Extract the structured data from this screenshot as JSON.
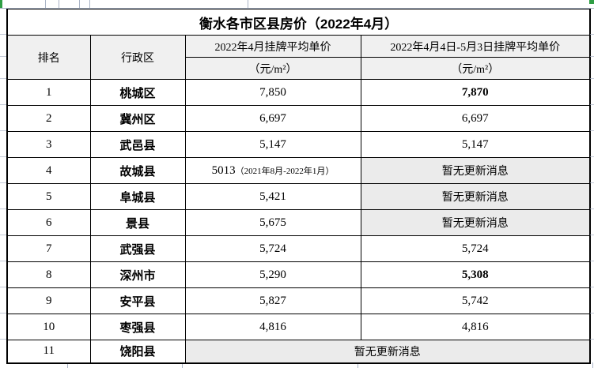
{
  "title": "衡水各市区县房价（2022年4月）",
  "header": {
    "rank": "排名",
    "district": "行政区",
    "apr_price_line1": "2022年4月挂牌平均单价",
    "apr_price_line2": "（元/m²）",
    "range_price_line1": "2022年4月4日-5月3日挂牌平均单价",
    "range_price_line2": "（元/m²）"
  },
  "rows": [
    {
      "rank": "1",
      "district": "桃城区",
      "apr": "7,850",
      "range": "7,870",
      "range_style": "red"
    },
    {
      "rank": "2",
      "district": "冀州区",
      "apr": "6,697",
      "range": "6,697",
      "range_style": "normal"
    },
    {
      "rank": "3",
      "district": "武邑县",
      "apr": "5,147",
      "range": "5,147",
      "range_style": "normal"
    },
    {
      "rank": "4",
      "district": "故城县",
      "apr": "5013",
      "apr_note": "（2021年8月-2022年1月）",
      "range": "暂无更新消息",
      "range_style": "noupdate"
    },
    {
      "rank": "5",
      "district": "阜城县",
      "apr": "5,421",
      "range": "暂无更新消息",
      "range_style": "noupdate"
    },
    {
      "rank": "6",
      "district": "景县",
      "apr": "5,675",
      "range": "暂无更新消息",
      "range_style": "noupdate"
    },
    {
      "rank": "7",
      "district": "武强县",
      "apr": "5,724",
      "range": "5,724",
      "range_style": "normal"
    },
    {
      "rank": "8",
      "district": "深州市",
      "apr": "5,290",
      "range": "5,308",
      "range_style": "red"
    },
    {
      "rank": "9",
      "district": "安平县",
      "apr": "5,827",
      "range": "5,742",
      "range_style": "green"
    },
    {
      "rank": "10",
      "district": "枣强县",
      "apr": "4,816",
      "range": "4,816",
      "range_style": "normal"
    },
    {
      "rank": "11",
      "district": "饶阳县",
      "merged": "暂无更新消息"
    }
  ],
  "colors": {
    "district_blue": "#2b7bc8",
    "up_red": "#c00000",
    "down_green": "#77b94e",
    "header_fill": "#f0f0f0",
    "noupdate_fill": "#ebebeb",
    "gridline": "#aab4c6",
    "sheet_green": "#2f9e44"
  }
}
